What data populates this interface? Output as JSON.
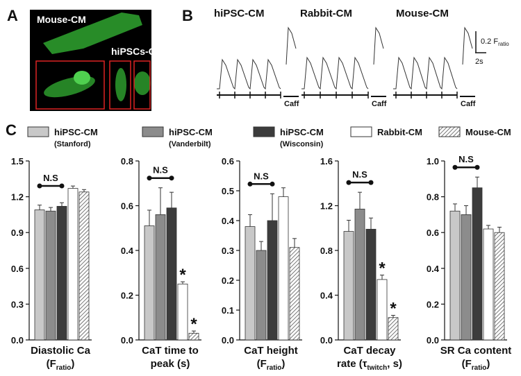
{
  "panels": {
    "a": {
      "label": "A",
      "texts": [
        "Mouse-CM",
        "hiPSCs-CM"
      ]
    },
    "b": {
      "label": "B",
      "traces": [
        {
          "name": "hiPSC-CM",
          "marker": "Caff"
        },
        {
          "name": "Rabbit-CM",
          "marker": "Caff"
        },
        {
          "name": "Mouse-CM",
          "marker": "Caff"
        }
      ],
      "scale_y": {
        "text": "0.2 F",
        "sub": "ratio"
      },
      "scale_x": "2s"
    },
    "c": {
      "label": "C"
    }
  },
  "legend": [
    {
      "label": "hiPSC-CM",
      "sublabel": "(Stanford)",
      "color": "#c8c8c8"
    },
    {
      "label": "hiPSC-CM",
      "sublabel": "(Vanderbilt)",
      "color": "#8c8c8c"
    },
    {
      "label": "hiPSC-CM",
      "sublabel": "(Wisconsin)",
      "color": "#3c3c3c"
    },
    {
      "label": "Rabbit-CM",
      "color": "#ffffff"
    },
    {
      "label": "Mouse-CM",
      "color": "hatch"
    }
  ],
  "chart_data": [
    {
      "type": "bar",
      "xlabel": [
        [
          {
            "text": "Diastolic  Ca"
          }
        ],
        [
          {
            "text": "(F"
          },
          {
            "text": "ratio",
            "sub": true
          },
          {
            "text": ")"
          }
        ]
      ],
      "values": [
        1.09,
        1.08,
        1.12,
        1.27,
        1.24
      ],
      "errors": [
        0.04,
        0.03,
        0.03,
        0.02,
        0.02
      ],
      "ylim": [
        0,
        1.5
      ],
      "yticks": [
        {
          "value": 0,
          "label": "0.0"
        },
        0.3,
        0.6,
        0.9,
        1.2,
        1.5
      ],
      "ns_label": "N.S"
    },
    {
      "type": "bar",
      "xlabel": [
        [
          {
            "text": "CaT time to"
          }
        ],
        [
          {
            "text": "peak (s)"
          }
        ]
      ],
      "values": [
        0.51,
        0.56,
        0.59,
        0.25,
        0.03
      ],
      "errors": [
        0.07,
        0.12,
        0.07,
        0.01,
        0.01
      ],
      "ylim": [
        0,
        0.8
      ],
      "yticks": [
        {
          "value": 0,
          "label": "0.0"
        },
        0.2,
        0.4,
        0.6,
        0.8
      ],
      "ns_label": "N.S",
      "value_marks": [
        null,
        null,
        null,
        "*",
        "*"
      ]
    },
    {
      "type": "bar",
      "xlabel": [
        [
          {
            "text": "CaT height"
          }
        ],
        [
          {
            "text": "(F"
          },
          {
            "text": "ratio",
            "sub": true
          },
          {
            "text": ")"
          }
        ]
      ],
      "values": [
        0.38,
        0.3,
        0.4,
        0.48,
        0.31
      ],
      "errors": [
        0.04,
        0.03,
        0.09,
        0.03,
        0.03
      ],
      "ylim": [
        0,
        0.6
      ],
      "yticks": [
        {
          "value": 0,
          "label": "0.0"
        },
        0.1,
        0.2,
        0.3,
        0.4,
        0.5,
        0.6
      ],
      "ns_label": "N.S"
    },
    {
      "type": "bar",
      "xlabel": [
        [
          {
            "text": "CaT decay"
          }
        ],
        [
          {
            "text": "rate (τ"
          },
          {
            "text": "twitch",
            "sub": true
          },
          {
            "text": ", s)"
          }
        ]
      ],
      "values": [
        0.97,
        1.17,
        0.99,
        0.54,
        0.2
      ],
      "errors": [
        0.1,
        0.15,
        0.1,
        0.04,
        0.02
      ],
      "ylim": [
        0,
        1.6
      ],
      "yticks": [
        {
          "value": 0,
          "label": "0.0"
        },
        0.4,
        0.8,
        1.2,
        1.6
      ],
      "ns_label": "N.S",
      "value_marks": [
        null,
        null,
        null,
        "*",
        "*"
      ]
    },
    {
      "type": "bar",
      "xlabel": [
        [
          {
            "text": "SR Ca content"
          }
        ],
        [
          {
            "text": "(F"
          },
          {
            "text": "ratio",
            "sub": true
          },
          {
            "text": ")"
          }
        ]
      ],
      "values": [
        0.72,
        0.7,
        0.85,
        0.62,
        0.6
      ],
      "errors": [
        0.04,
        0.05,
        0.06,
        0.02,
        0.03
      ],
      "ylim": [
        0,
        1.0
      ],
      "yticks": [
        {
          "value": 0,
          "label": "0.0"
        },
        0.2,
        0.4,
        0.6,
        0.8,
        {
          "value": 1,
          "label": "1.0"
        }
      ],
      "ns_label": "N.S"
    }
  ]
}
